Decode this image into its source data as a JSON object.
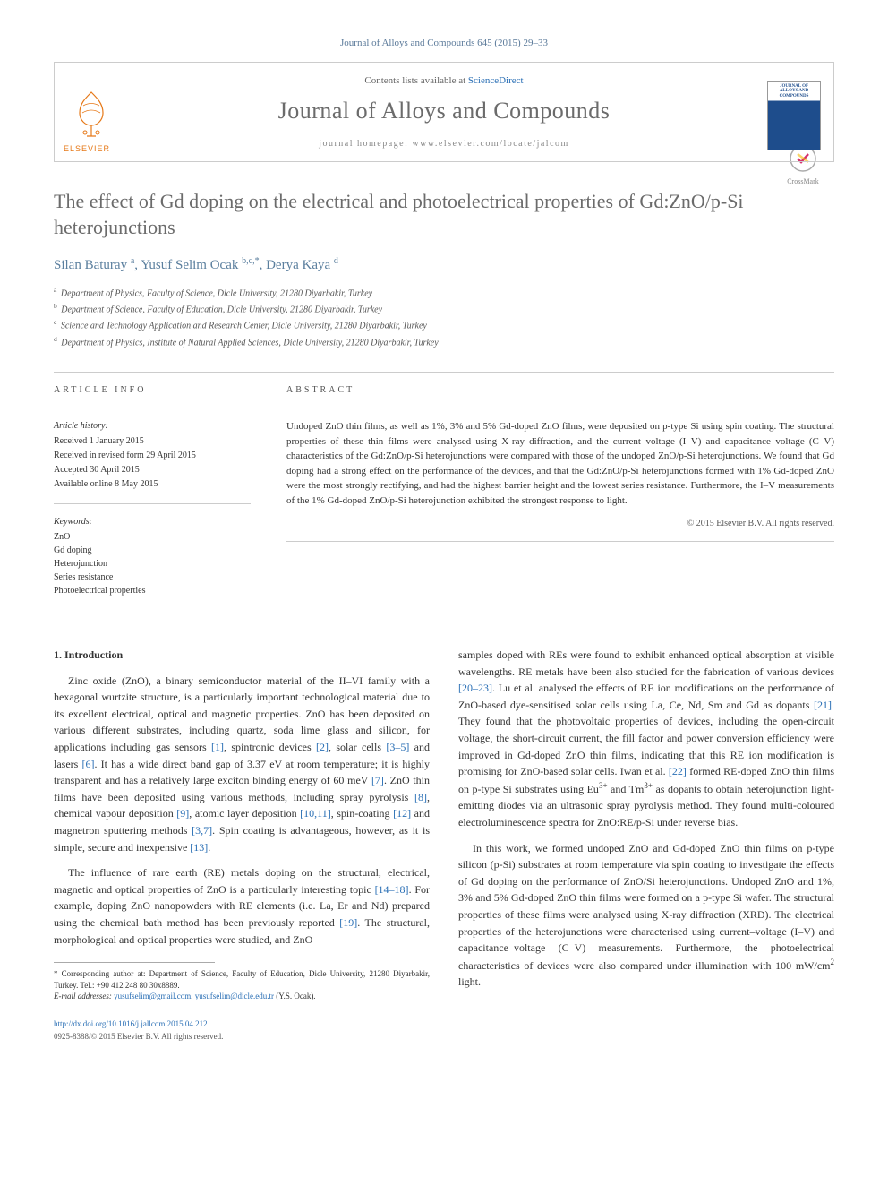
{
  "citation": "Journal of Alloys and Compounds 645 (2015) 29–33",
  "header": {
    "contents_prefix": "Contents lists available at ",
    "contents_link": "ScienceDirect",
    "journal_name": "Journal of Alloys and Compounds",
    "homepage_prefix": "journal homepage: ",
    "homepage_url": "www.elsevier.com/locate/jalcom",
    "elsevier_label": "ELSEVIER",
    "cover_text_top": "JOURNAL OF",
    "cover_text_main": "ALLOYS AND COMPOUNDS"
  },
  "crossmark_label": "CrossMark",
  "title": "The effect of Gd doping on the electrical and photoelectrical properties of Gd:ZnO/p-Si heterojunctions",
  "authors_html": "Silan Baturay <sup>a</sup>, Yusuf Selim Ocak <sup>b,c,*</sup>, Derya Kaya <sup>d</sup>",
  "affiliations": [
    {
      "sup": "a",
      "text": "Department of Physics, Faculty of Science, Dicle University, 21280 Diyarbakir, Turkey"
    },
    {
      "sup": "b",
      "text": "Department of Science, Faculty of Education, Dicle University, 21280 Diyarbakir, Turkey"
    },
    {
      "sup": "c",
      "text": "Science and Technology Application and Research Center, Dicle University, 21280 Diyarbakir, Turkey"
    },
    {
      "sup": "d",
      "text": "Department of Physics, Institute of Natural Applied Sciences, Dicle University, 21280 Diyarbakir, Turkey"
    }
  ],
  "article_info": {
    "heading": "ARTICLE INFO",
    "history_label": "Article history:",
    "history": [
      "Received 1 January 2015",
      "Received in revised form 29 April 2015",
      "Accepted 30 April 2015",
      "Available online 8 May 2015"
    ],
    "keywords_label": "Keywords:",
    "keywords": [
      "ZnO",
      "Gd doping",
      "Heterojunction",
      "Series resistance",
      "Photoelectrical properties"
    ]
  },
  "abstract": {
    "heading": "ABSTRACT",
    "text": "Undoped ZnO thin films, as well as 1%, 3% and 5% Gd-doped ZnO films, were deposited on p-type Si using spin coating. The structural properties of these thin films were analysed using X-ray diffraction, and the current–voltage (I–V) and capacitance–voltage (C–V) characteristics of the Gd:ZnO/p-Si heterojunctions were compared with those of the undoped ZnO/p-Si heterojunctions. We found that Gd doping had a strong effect on the performance of the devices, and that the Gd:ZnO/p-Si heterojunctions formed with 1% Gd-doped ZnO were the most strongly rectifying, and had the highest barrier height and the lowest series resistance. Furthermore, the I–V measurements of the 1% Gd-doped ZnO/p-Si heterojunction exhibited the strongest response to light.",
    "copyright": "© 2015 Elsevier B.V. All rights reserved."
  },
  "section1_heading": "1. Introduction",
  "body": {
    "col1": {
      "p1_parts": [
        "Zinc oxide (ZnO), a binary semiconductor material of the II–VI family with a hexagonal wurtzite structure, is a particularly important technological material due to its excellent electrical, optical and magnetic properties. ZnO has been deposited on various different substrates, including quartz, soda lime glass and silicon, for applications including gas sensors ",
        "[1]",
        ", spintronic devices ",
        "[2]",
        ", solar cells ",
        "[3–5]",
        " and lasers ",
        "[6]",
        ". It has a wide direct band gap of 3.37 eV at room temperature; it is highly transparent and has a relatively large exciton binding energy of 60 meV ",
        "[7]",
        ". ZnO thin films have been deposited using various methods, including spray pyrolysis ",
        "[8]",
        ", chemical vapour deposition ",
        "[9]",
        ", atomic layer deposition ",
        "[10,11]",
        ", spin-coating ",
        "[12]",
        " and magnetron sputtering methods ",
        "[3,7]",
        ". Spin coating is advantageous, however, as it is simple, secure and inexpensive ",
        "[13]",
        "."
      ],
      "p2_parts": [
        "The influence of rare earth (RE) metals doping on the structural, electrical, magnetic and optical properties of ZnO is a particularly interesting topic ",
        "[14–18]",
        ". For example, doping ZnO nanopowders with RE elements (i.e. La, Er and Nd) prepared using the chemical bath method has been previously reported ",
        "[19]",
        ". The structural, morphological and optical properties were studied, and ZnO"
      ]
    },
    "col2": {
      "p1_parts": [
        "samples doped with REs were found to exhibit enhanced optical absorption at visible wavelengths. RE metals have been also studied for the fabrication of various devices ",
        "[20–23]",
        ". Lu et al. analysed the effects of RE ion modifications on the performance of ZnO-based dye-sensitised solar cells using La, Ce, Nd, Sm and Gd as dopants ",
        "[21]",
        ". They found that the photovoltaic properties of devices, including the open-circuit voltage, the short-circuit current, the fill factor and power conversion efficiency were improved in Gd-doped ZnO thin films, indicating that this RE ion modification is promising for ZnO-based solar cells. Iwan et al. ",
        "[22]",
        " formed RE-doped ZnO thin films on p-type Si substrates using Eu",
        "3+",
        " and Tm",
        "3+",
        " as dopants to obtain heterojunction light-emitting diodes via an ultrasonic spray pyrolysis method. They found multi-coloured electroluminescence spectra for ZnO:RE/p-Si under reverse bias."
      ],
      "p2": "In this work, we formed undoped ZnO and Gd-doped ZnO thin films on p-type silicon (p-Si) substrates at room temperature via spin coating to investigate the effects of Gd doping on the performance of ZnO/Si heterojunctions. Undoped ZnO and 1%, 3% and 5% Gd-doped ZnO thin films were formed on a p-type Si wafer. The structural properties of these films were analysed using X-ray diffraction (XRD). The electrical properties of the heterojunctions were characterised using current–voltage (I–V) and capacitance–voltage (C–V) measurements. Furthermore, the photoelectrical characteristics of devices were also compared under illumination with 100 mW/cm",
      "p2_sup": "2",
      "p2_tail": " light."
    }
  },
  "footer": {
    "corresponding_prefix": "* Corresponding author at: Department of Science, Faculty of Education, Dicle University, 21280 Diyarbakir, Turkey. Tel.: +90 412 248 80 30x8889.",
    "email_label": "E-mail addresses: ",
    "email1": "yusufselim@gmail.com",
    "email_mid": ", ",
    "email2": "yusufselim@dicle.edu.tr",
    "email_tail": " (Y.S. Ocak).",
    "doi": "http://dx.doi.org/10.1016/j.jallcom.2015.04.212",
    "issn": "0925-8388/© 2015 Elsevier B.V. All rights reserved."
  },
  "colors": {
    "link": "#2a6fb5",
    "accent_orange": "#e67817",
    "title_gray": "#6b6b6b",
    "author_blue": "#5b7f9e"
  }
}
